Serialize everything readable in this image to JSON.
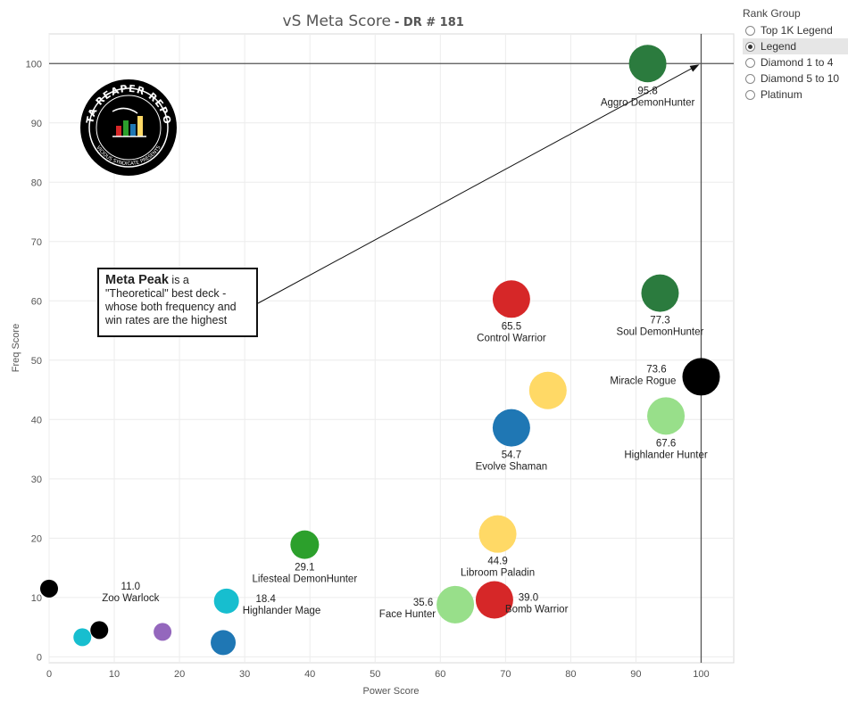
{
  "chart_data": {
    "type": "scatter",
    "title": "vS Meta Score",
    "subtitle": "- DR # 181",
    "xlabel": "Power Score",
    "ylabel": "Freq Score",
    "xlim": [
      0,
      105
    ],
    "ylim": [
      -1,
      105
    ],
    "xticks": [
      0,
      10,
      20,
      30,
      40,
      50,
      60,
      70,
      80,
      90,
      100
    ],
    "yticks": [
      0,
      10,
      20,
      30,
      40,
      50,
      60,
      70,
      80,
      90,
      100
    ],
    "grid": true,
    "reference_lines": {
      "x": 100,
      "y": 100
    },
    "points": [
      {
        "x": 91.8,
        "y": 100.0,
        "color": "#2b7b3e",
        "score": "95.8",
        "label": "Aggro DemonHunter"
      },
      {
        "x": 93.7,
        "y": 61.3,
        "color": "#2b7b3e",
        "score": "77.3",
        "label": "Soul DemonHunter"
      },
      {
        "x": 70.9,
        "y": 60.3,
        "color": "#d62728",
        "score": "65.5",
        "label": "Control Warrior"
      },
      {
        "x": 100.0,
        "y": 47.2,
        "color": "#000000",
        "score": "73.6",
        "label": "Miracle Rogue"
      },
      {
        "x": 76.5,
        "y": 44.9,
        "color": "#ffd966",
        "score": "",
        "label": ""
      },
      {
        "x": 94.6,
        "y": 40.6,
        "color": "#98df8a",
        "score": "67.6",
        "label": "Highlander Hunter"
      },
      {
        "x": 70.9,
        "y": 38.6,
        "color": "#1f77b4",
        "score": "54.7",
        "label": "Evolve Shaman"
      },
      {
        "x": 68.8,
        "y": 20.7,
        "color": "#ffd966",
        "score": "44.9",
        "label": "Libroom Paladin"
      },
      {
        "x": 39.2,
        "y": 18.9,
        "color": "#2ca02c",
        "score": "29.1",
        "label": "Lifesteal DemonHunter"
      },
      {
        "x": 68.3,
        "y": 9.6,
        "color": "#d62728",
        "score": "39.0",
        "label": "Bomb Warrior"
      },
      {
        "x": 62.3,
        "y": 8.8,
        "color": "#98df8a",
        "score": "35.6",
        "label": "Face Hunter"
      },
      {
        "x": 27.2,
        "y": 9.4,
        "color": "#17becf",
        "score": "18.4",
        "label": "Highlander Mage"
      },
      {
        "x": 0.0,
        "y": 11.5,
        "color": "#000000",
        "score": "11.0",
        "label": "Zoo Warlock"
      },
      {
        "x": 17.4,
        "y": 4.2,
        "color": "#9467bd",
        "score": "",
        "label": ""
      },
      {
        "x": 7.7,
        "y": 4.5,
        "color": "#000000",
        "score": "",
        "label": ""
      },
      {
        "x": 5.1,
        "y": 3.3,
        "color": "#17becf",
        "score": "",
        "label": ""
      },
      {
        "x": 26.7,
        "y": 2.4,
        "color": "#1f77b4",
        "score": "",
        "label": ""
      }
    ]
  },
  "annotation": {
    "heading": "Meta Peak",
    "body_start": " is a",
    "body": "\"Theoretical\" best deck - whose both frequency and win rates are the highest"
  },
  "logo": {
    "text_top": "DATA REAPER REPORT",
    "text_bottom": "VICIOUS SYNDICATE PRESENTS"
  },
  "legend": {
    "title": "Rank Group",
    "options": [
      "Top 1K Legend",
      "Legend",
      "Diamond 1 to 4",
      "Diamond 5 to 10",
      "Platinum"
    ],
    "selected": "Legend"
  }
}
